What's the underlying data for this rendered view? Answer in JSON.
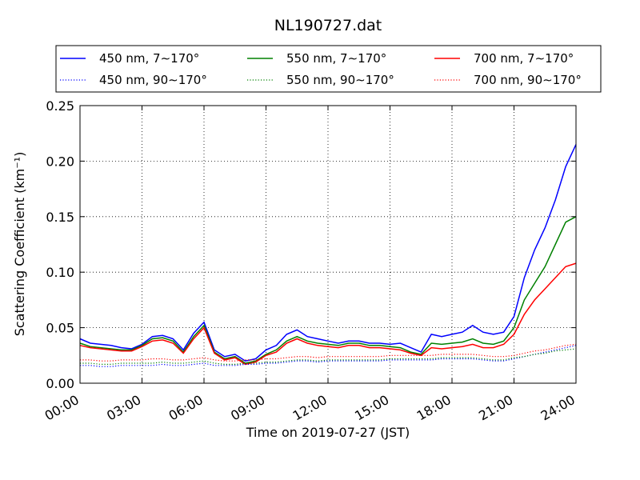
{
  "chart_data": {
    "type": "line",
    "title": "NL190727.dat",
    "xlabel": "Time on 2019-07-27 (JST)",
    "ylabel": "Scattering Coefficient (km⁻¹)",
    "xlim": [
      "00:00",
      "24:00"
    ],
    "ylim": [
      0,
      0.25
    ],
    "x_ticks": [
      "00:00",
      "03:00",
      "06:00",
      "09:00",
      "12:00",
      "15:00",
      "18:00",
      "21:00",
      "24:00"
    ],
    "y_ticks": [
      "0.00",
      "0.05",
      "0.10",
      "0.15",
      "0.20",
      "0.25"
    ],
    "grid": true,
    "legend_position": "top",
    "x": [
      "00:00",
      "00:30",
      "01:00",
      "01:30",
      "02:00",
      "02:30",
      "03:00",
      "03:30",
      "04:00",
      "04:30",
      "05:00",
      "05:30",
      "06:00",
      "06:30",
      "07:00",
      "07:30",
      "08:00",
      "08:30",
      "09:00",
      "09:30",
      "10:00",
      "10:30",
      "11:00",
      "11:30",
      "12:00",
      "12:30",
      "13:00",
      "13:30",
      "14:00",
      "14:30",
      "15:00",
      "15:30",
      "16:00",
      "16:30",
      "17:00",
      "17:30",
      "18:00",
      "18:30",
      "19:00",
      "19:30",
      "20:00",
      "20:30",
      "21:00",
      "21:30",
      "22:00",
      "22:30",
      "23:00",
      "23:30",
      "24:00"
    ],
    "series": [
      {
        "name": "450 nm, 7∼170°",
        "color": "#0000ff",
        "style": "solid",
        "values": [
          0.04,
          0.036,
          0.035,
          0.034,
          0.032,
          0.031,
          0.035,
          0.042,
          0.043,
          0.04,
          0.03,
          0.045,
          0.055,
          0.03,
          0.024,
          0.026,
          0.02,
          0.022,
          0.03,
          0.034,
          0.044,
          0.048,
          0.042,
          0.04,
          0.038,
          0.036,
          0.038,
          0.038,
          0.036,
          0.036,
          0.035,
          0.036,
          0.032,
          0.028,
          0.044,
          0.042,
          0.044,
          0.046,
          0.052,
          0.046,
          0.044,
          0.046,
          0.06,
          0.095,
          0.12,
          0.14,
          0.165,
          0.195,
          0.215
        ]
      },
      {
        "name": "550 nm, 7∼170°",
        "color": "#008000",
        "style": "solid",
        "values": [
          0.036,
          0.033,
          0.032,
          0.031,
          0.03,
          0.03,
          0.034,
          0.04,
          0.041,
          0.038,
          0.028,
          0.042,
          0.052,
          0.028,
          0.022,
          0.024,
          0.018,
          0.02,
          0.026,
          0.03,
          0.038,
          0.042,
          0.038,
          0.036,
          0.035,
          0.034,
          0.036,
          0.036,
          0.034,
          0.034,
          0.033,
          0.032,
          0.028,
          0.026,
          0.036,
          0.035,
          0.036,
          0.037,
          0.04,
          0.036,
          0.035,
          0.038,
          0.05,
          0.075,
          0.09,
          0.105,
          0.125,
          0.145,
          0.15
        ]
      },
      {
        "name": "700 nm, 7∼170°",
        "color": "#ff0000",
        "style": "solid",
        "values": [
          0.034,
          0.032,
          0.031,
          0.03,
          0.029,
          0.029,
          0.033,
          0.038,
          0.039,
          0.036,
          0.027,
          0.04,
          0.05,
          0.027,
          0.021,
          0.023,
          0.017,
          0.019,
          0.025,
          0.028,
          0.036,
          0.04,
          0.036,
          0.034,
          0.033,
          0.032,
          0.034,
          0.034,
          0.032,
          0.032,
          0.031,
          0.03,
          0.027,
          0.025,
          0.032,
          0.031,
          0.032,
          0.033,
          0.035,
          0.032,
          0.032,
          0.035,
          0.044,
          0.062,
          0.075,
          0.085,
          0.095,
          0.105,
          0.108
        ]
      },
      {
        "name": "450 nm, 90∼170°",
        "color": "#0000ff",
        "style": "dotted",
        "values": [
          0.016,
          0.016,
          0.015,
          0.015,
          0.016,
          0.016,
          0.016,
          0.016,
          0.017,
          0.016,
          0.016,
          0.017,
          0.018,
          0.016,
          0.016,
          0.016,
          0.017,
          0.017,
          0.018,
          0.018,
          0.019,
          0.02,
          0.02,
          0.019,
          0.02,
          0.02,
          0.02,
          0.02,
          0.02,
          0.02,
          0.021,
          0.021,
          0.021,
          0.021,
          0.021,
          0.022,
          0.022,
          0.022,
          0.022,
          0.021,
          0.02,
          0.02,
          0.022,
          0.024,
          0.026,
          0.028,
          0.03,
          0.032,
          0.034
        ]
      },
      {
        "name": "550 nm, 90∼170°",
        "color": "#008000",
        "style": "dotted",
        "values": [
          0.018,
          0.018,
          0.017,
          0.017,
          0.018,
          0.018,
          0.018,
          0.018,
          0.019,
          0.018,
          0.018,
          0.019,
          0.02,
          0.018,
          0.017,
          0.017,
          0.018,
          0.018,
          0.019,
          0.019,
          0.02,
          0.021,
          0.021,
          0.02,
          0.021,
          0.021,
          0.021,
          0.021,
          0.021,
          0.021,
          0.022,
          0.022,
          0.022,
          0.022,
          0.022,
          0.023,
          0.023,
          0.023,
          0.023,
          0.022,
          0.021,
          0.021,
          0.023,
          0.024,
          0.026,
          0.027,
          0.029,
          0.03,
          0.031
        ]
      },
      {
        "name": "700 nm, 90∼170°",
        "color": "#ff0000",
        "style": "dotted",
        "values": [
          0.021,
          0.021,
          0.02,
          0.02,
          0.021,
          0.021,
          0.021,
          0.022,
          0.022,
          0.021,
          0.021,
          0.022,
          0.023,
          0.021,
          0.02,
          0.02,
          0.021,
          0.021,
          0.022,
          0.022,
          0.023,
          0.024,
          0.024,
          0.023,
          0.024,
          0.024,
          0.024,
          0.024,
          0.024,
          0.024,
          0.025,
          0.025,
          0.025,
          0.025,
          0.025,
          0.026,
          0.026,
          0.026,
          0.026,
          0.025,
          0.024,
          0.024,
          0.025,
          0.027,
          0.029,
          0.03,
          0.032,
          0.034,
          0.035
        ]
      }
    ]
  }
}
